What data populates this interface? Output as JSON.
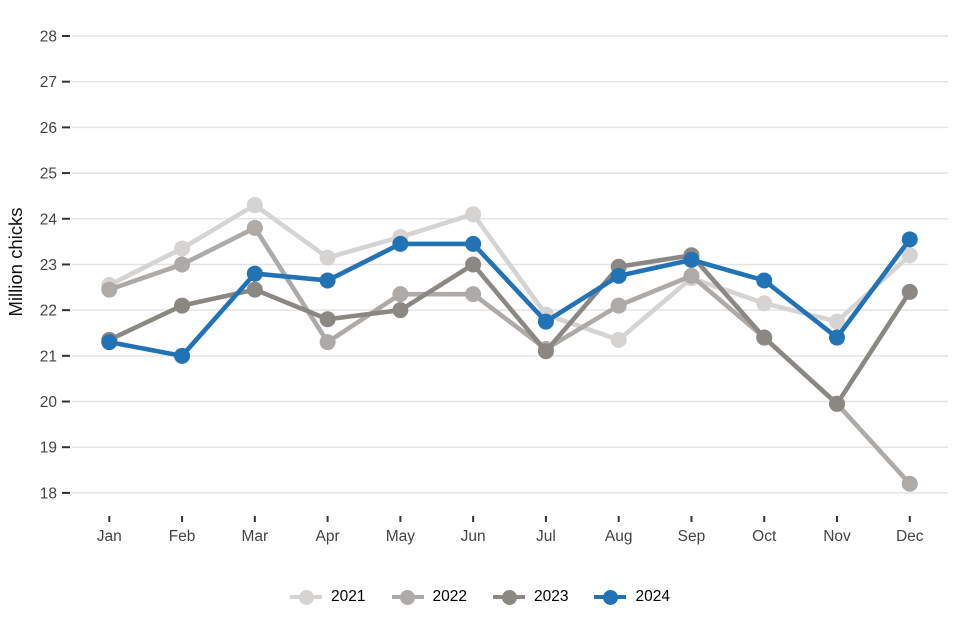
{
  "chart_data": {
    "type": "line",
    "title": "",
    "ylabel": "Million chicks",
    "xlabel": "",
    "ylim": [
      18,
      28
    ],
    "yticks": [
      18,
      19,
      20,
      21,
      22,
      23,
      24,
      25,
      26,
      27,
      28
    ],
    "grid": true,
    "legend_position": "bottom",
    "categories": [
      "Jan",
      "Feb",
      "Mar",
      "Apr",
      "May",
      "Jun",
      "Jul",
      "Aug",
      "Sep",
      "Oct",
      "Nov",
      "Dec"
    ],
    "series": [
      {
        "name": "2021",
        "color": "#d6d4d2",
        "values": [
          22.55,
          23.35,
          24.3,
          23.15,
          23.6,
          24.1,
          21.9,
          21.35,
          22.7,
          22.15,
          21.75,
          23.2
        ]
      },
      {
        "name": "2022",
        "color": "#adaaa7",
        "values": [
          22.45,
          23.0,
          23.8,
          21.3,
          22.35,
          22.35,
          21.15,
          22.1,
          22.75,
          21.4,
          19.95,
          18.2
        ]
      },
      {
        "name": "2023",
        "color": "#8b8883",
        "values": [
          21.35,
          22.1,
          22.45,
          21.8,
          22.0,
          23.0,
          21.1,
          22.95,
          23.2,
          21.4,
          19.95,
          22.4
        ]
      },
      {
        "name": "2024",
        "color": "#2272b6",
        "values": [
          21.3,
          21.0,
          22.8,
          22.65,
          23.45,
          23.45,
          21.75,
          22.75,
          23.1,
          22.65,
          21.4,
          23.55
        ]
      }
    ],
    "colors": {
      "grid": "#e4e4e4",
      "tick_mark": "#333333",
      "tick_label": "#444444",
      "axis_title": "#111111",
      "background": "#ffffff"
    }
  }
}
